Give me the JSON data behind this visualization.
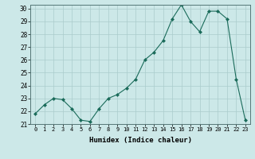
{
  "x": [
    0,
    1,
    2,
    3,
    4,
    5,
    6,
    7,
    8,
    9,
    10,
    11,
    12,
    13,
    14,
    15,
    16,
    17,
    18,
    19,
    20,
    21,
    22,
    23
  ],
  "y": [
    21.8,
    22.5,
    23.0,
    22.9,
    22.2,
    21.3,
    21.2,
    22.2,
    23.0,
    23.3,
    23.8,
    24.5,
    26.0,
    26.6,
    27.5,
    29.2,
    30.3,
    29.0,
    28.2,
    29.8,
    29.8,
    29.2,
    24.5,
    21.3
  ],
  "xlabel": "Humidex (Indice chaleur)",
  "ylim": [
    21,
    30
  ],
  "xlim": [
    -0.5,
    23.5
  ],
  "yticks": [
    21,
    22,
    23,
    24,
    25,
    26,
    27,
    28,
    29,
    30
  ],
  "xticks": [
    0,
    1,
    2,
    3,
    4,
    5,
    6,
    7,
    8,
    9,
    10,
    11,
    12,
    13,
    14,
    15,
    16,
    17,
    18,
    19,
    20,
    21,
    22,
    23
  ],
  "line_color": "#1a6b5a",
  "marker_color": "#1a6b5a",
  "bg_color": "#cce8e8",
  "grid_color": "#aacccc",
  "axes_bg": "#cce8e8"
}
